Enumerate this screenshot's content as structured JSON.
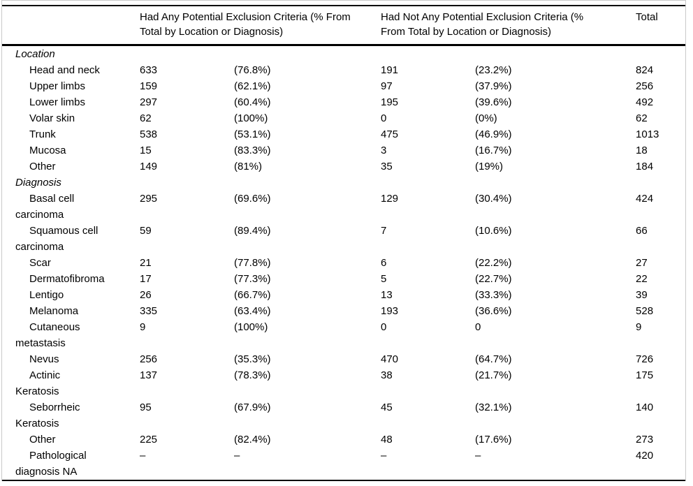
{
  "table": {
    "header": {
      "had_any": "Had Any Potential Exclusion Criteria (% From\nTotal by Location or Diagnosis)",
      "had_not_any": "Had Not Any Potential Exclusion Criteria (%\nFrom Total by Location or Diagnosis)",
      "total": "Total"
    },
    "rows": [
      {
        "type": "section",
        "label": "Location",
        "n1": "",
        "p1": "",
        "n2": "",
        "p2": "",
        "total": ""
      },
      {
        "type": "item",
        "label": "Head and neck",
        "n1": "633",
        "p1": "(76.8%)",
        "n2": "191",
        "p2": "(23.2%)",
        "total": "824"
      },
      {
        "type": "item",
        "label": "Upper limbs",
        "n1": "159",
        "p1": "(62.1%)",
        "n2": "97",
        "p2": "(37.9%)",
        "total": "256"
      },
      {
        "type": "item",
        "label": "Lower limbs",
        "n1": "297",
        "p1": "(60.4%)",
        "n2": "195",
        "p2": "(39.6%)",
        "total": "492"
      },
      {
        "type": "item",
        "label": "Volar skin",
        "n1": "62",
        "p1": "(100%)",
        "n2": "0",
        "p2": "(0%)",
        "total": "62"
      },
      {
        "type": "item",
        "label": "Trunk",
        "n1": "538",
        "p1": "(53.1%)",
        "n2": "475",
        "p2": "(46.9%)",
        "total": "1013"
      },
      {
        "type": "item",
        "label": "Mucosa",
        "n1": "15",
        "p1": "(83.3%)",
        "n2": "3",
        "p2": "(16.7%)",
        "total": "18"
      },
      {
        "type": "item",
        "label": "Other",
        "n1": "149",
        "p1": "(81%)",
        "n2": "35",
        "p2": "(19%)",
        "total": "184"
      },
      {
        "type": "section",
        "label": "Diagnosis",
        "n1": "",
        "p1": "",
        "n2": "",
        "p2": "",
        "total": ""
      },
      {
        "type": "item",
        "label": "Basal cell\ncarcinoma",
        "n1": "295",
        "p1": "(69.6%)",
        "n2": "129",
        "p2": "(30.4%)",
        "total": "424"
      },
      {
        "type": "item",
        "label": "Squamous cell\ncarcinoma",
        "n1": "59",
        "p1": "(89.4%)",
        "n2": "7",
        "p2": "(10.6%)",
        "total": "66"
      },
      {
        "type": "item",
        "label": "Scar",
        "n1": "21",
        "p1": "(77.8%)",
        "n2": "6",
        "p2": "(22.2%)",
        "total": "27"
      },
      {
        "type": "item",
        "label": "Dermatofibroma",
        "n1": "17",
        "p1": "(77.3%)",
        "n2": "5",
        "p2": "(22.7%)",
        "total": "22"
      },
      {
        "type": "item",
        "label": "Lentigo",
        "n1": "26",
        "p1": "(66.7%)",
        "n2": "13",
        "p2": "(33.3%)",
        "total": "39"
      },
      {
        "type": "item",
        "label": "Melanoma",
        "n1": "335",
        "p1": "(63.4%)",
        "n2": "193",
        "p2": "(36.6%)",
        "total": "528"
      },
      {
        "type": "item",
        "label": "Cutaneous\nmetastasis",
        "n1": "9",
        "p1": "(100%)",
        "n2": "0",
        "p2": "0",
        "total": "9"
      },
      {
        "type": "item",
        "label": "Nevus",
        "n1": "256",
        "p1": "(35.3%)",
        "n2": "470",
        "p2": "(64.7%)",
        "total": "726"
      },
      {
        "type": "item",
        "label": "Actinic\nKeratosis",
        "n1": "137",
        "p1": "(78.3%)",
        "n2": "38",
        "p2": "(21.7%)",
        "total": "175"
      },
      {
        "type": "item",
        "label": "Seborrheic\nKeratosis",
        "n1": "95",
        "p1": "(67.9%)",
        "n2": "45",
        "p2": "(32.1%)",
        "total": "140"
      },
      {
        "type": "item",
        "label": "Other",
        "n1": "225",
        "p1": "(82.4%)",
        "n2": "48",
        "p2": "(17.6%)",
        "total": "273"
      },
      {
        "type": "item",
        "label": "Pathological\ndiagnosis NA",
        "n1": "–",
        "p1": "–",
        "n2": "–",
        "p2": "–",
        "total": "420"
      }
    ]
  }
}
